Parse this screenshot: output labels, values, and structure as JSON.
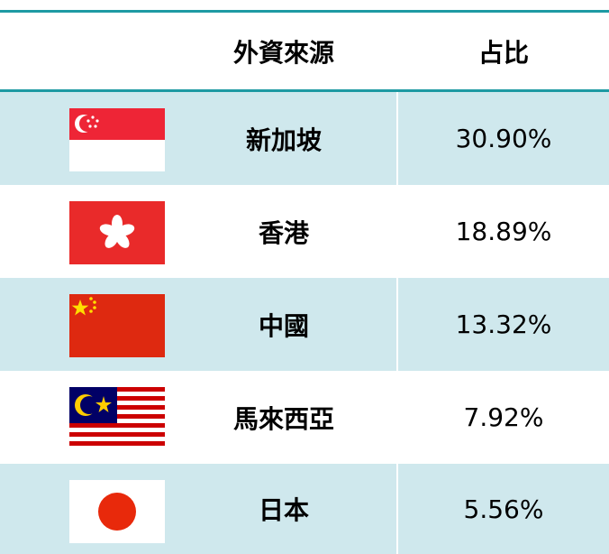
{
  "table": {
    "header": [
      "外資來源",
      "占比"
    ],
    "rows": [
      [
        "新加坡",
        "30.90%"
      ],
      [
        "香港",
        "18.89%"
      ],
      [
        "中國",
        "13.32%"
      ],
      [
        "馬來西亞",
        "7.92%"
      ],
      [
        "日本",
        "5.56%"
      ]
    ]
  }
}
